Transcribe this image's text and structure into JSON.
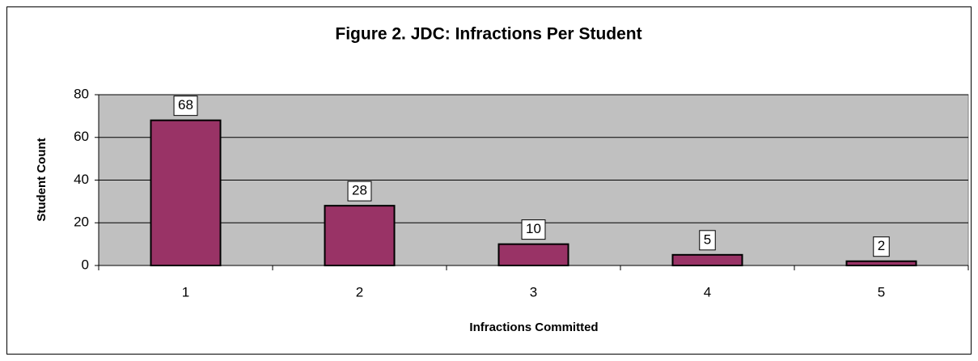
{
  "chart_data": {
    "type": "bar",
    "title": "Figure 2. JDC: Infractions Per Student",
    "x_label": "Infractions Committed",
    "y_label": "Student Count",
    "categories": [
      "1",
      "2",
      "3",
      "4",
      "5"
    ],
    "values": [
      68,
      28,
      10,
      5,
      2
    ],
    "color": "#993366",
    "ylim": [
      0,
      80
    ],
    "yticks": [
      0,
      20,
      40,
      60,
      80
    ],
    "grid": true,
    "plot_background": "#c0c0c0"
  }
}
